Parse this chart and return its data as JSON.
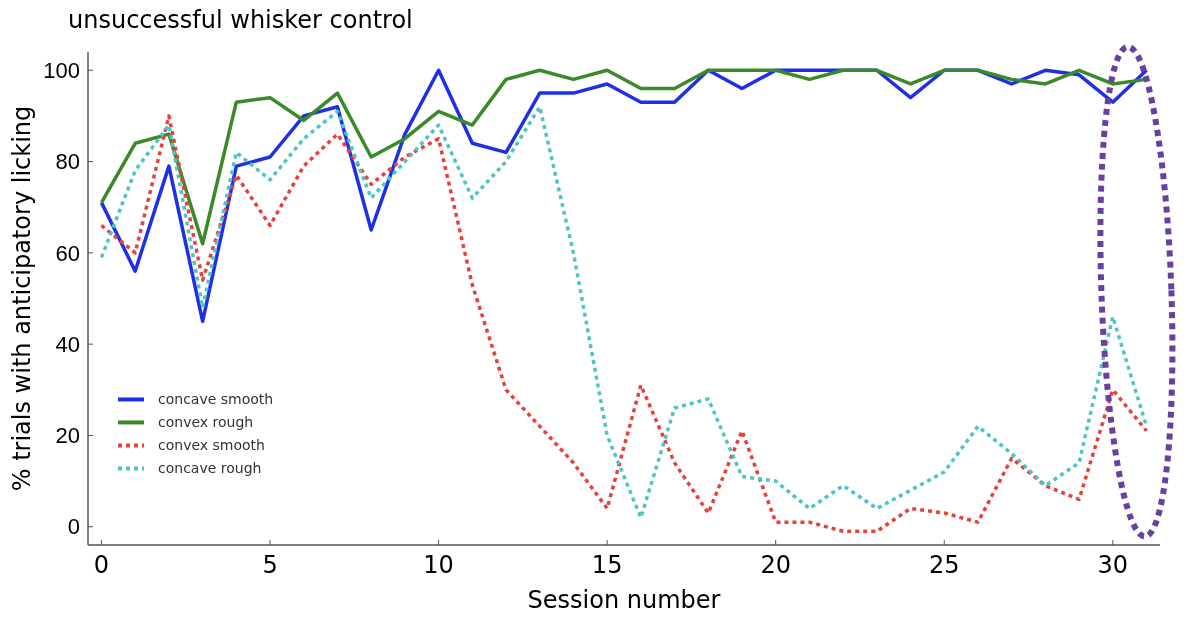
{
  "chart_data": {
    "type": "line",
    "title": "unsuccessful whisker control",
    "xlabel": "Session number",
    "ylabel": "% trials with anticipatory licking",
    "x": [
      0,
      1,
      2,
      3,
      4,
      5,
      6,
      7,
      8,
      9,
      10,
      11,
      12,
      13,
      14,
      15,
      16,
      17,
      18,
      19,
      20,
      21,
      22,
      23,
      24,
      25,
      26,
      27,
      28,
      29,
      30,
      31
    ],
    "series": [
      {
        "name": "concave smooth",
        "color": "#1f2fe8",
        "line_style": "solid",
        "values": [
          71,
          56,
          79,
          45,
          79,
          81,
          90,
          92,
          65,
          86,
          100,
          84,
          82,
          95,
          95,
          97,
          93,
          93,
          100,
          96,
          100,
          100,
          100,
          100,
          94,
          100,
          100,
          97,
          100,
          99,
          93,
          100
        ]
      },
      {
        "name": "convex rough",
        "color": "#3a8a2a",
        "line_style": "solid",
        "values": [
          71,
          84,
          86,
          62,
          93,
          94,
          89,
          95,
          81,
          85,
          91,
          88,
          98,
          100,
          98,
          100,
          96,
          96,
          100,
          100,
          100,
          98,
          100,
          100,
          97,
          100,
          100,
          98,
          97,
          100,
          97,
          98
        ]
      },
      {
        "name": "convex smooth",
        "color": "#e8403a",
        "line_style": "dotted",
        "values": [
          66,
          60,
          90,
          54,
          77,
          66,
          79,
          86,
          75,
          81,
          85,
          53,
          30,
          22,
          14,
          4,
          31,
          14,
          3,
          21,
          1,
          1,
          -1,
          -1,
          4,
          3,
          1,
          15,
          9,
          6,
          30,
          21
        ]
      },
      {
        "name": "concave rough",
        "color": "#4ec4c4",
        "line_style": "dotted",
        "values": [
          59,
          78,
          88,
          48,
          82,
          76,
          85,
          91,
          72,
          80,
          88,
          72,
          80,
          92,
          60,
          20,
          2,
          26,
          28,
          11,
          10,
          4,
          9,
          4,
          8,
          12,
          22,
          16,
          9,
          14,
          46,
          22
        ]
      }
    ],
    "xlim": [
      -0.4,
      31.4
    ],
    "ylim": [
      -4,
      104
    ],
    "xticks": [
      0,
      5,
      10,
      15,
      20,
      25,
      30
    ],
    "yticks": [
      0,
      20,
      40,
      60,
      80,
      100
    ],
    "grid": false,
    "legend": "bottom left"
  }
}
